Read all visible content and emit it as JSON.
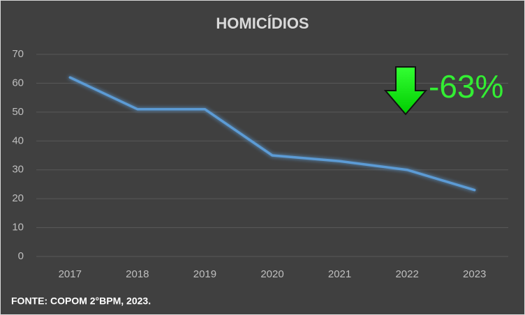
{
  "chart_data": {
    "type": "line",
    "title": "HOMICÍDIOS",
    "categories": [
      "2017",
      "2018",
      "2019",
      "2020",
      "2021",
      "2022",
      "2023"
    ],
    "values": [
      62,
      51,
      51,
      35,
      33,
      30,
      23
    ],
    "color": "#5b9bd5",
    "ylim": [
      0,
      70
    ],
    "yticks": [
      0,
      10,
      20,
      30,
      40,
      50,
      60,
      70
    ],
    "grid": true,
    "annotation": "-63%",
    "source": "FONTE: COPOM 2°BPM, 2023."
  }
}
